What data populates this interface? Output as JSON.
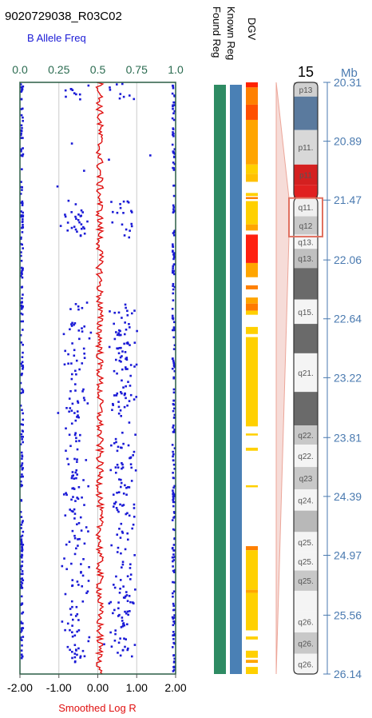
{
  "sample_id": "9020729038_R03C02",
  "track_labels": {
    "dgv": "DGV",
    "known_reg": "Known Reg",
    "found_reg": "Found Reg"
  },
  "colors": {
    "baf_points": "#1a1ad6",
    "log_r_line": "#e01010",
    "grid": "#cccccc",
    "top_axis_text": "#2b6b50",
    "found_reg": "#2e8b63",
    "known_reg": "#4a80b5",
    "ideogram_axis": "#4a7ab0",
    "highlight_box": "#e07060"
  },
  "chart_data": {
    "type": "scatter",
    "title": "9020729038_R03C02",
    "top_axis": {
      "label": "B Allele Freq",
      "range": [
        0.0,
        1.0
      ],
      "ticks": [
        "0.0",
        "0.25",
        "0.5",
        "0.75",
        "1.0"
      ]
    },
    "bottom_axis": {
      "label": "Smoothed Log R",
      "range": [
        -2.0,
        2.0
      ],
      "ticks": [
        "-2.00",
        "-1.00",
        "0.00",
        "1.00",
        "2.00"
      ]
    },
    "y_axis": {
      "label": "Mb",
      "chromosome": "15",
      "range": [
        20.31,
        26.14
      ],
      "ticks": [
        "20.31",
        "20.89",
        "21.47",
        "22.06",
        "22.64",
        "23.22",
        "23.81",
        "24.39",
        "24.97",
        "25.56",
        "26.14"
      ]
    },
    "series": [
      {
        "name": "B Allele Freq",
        "kind": "scatter",
        "description_from_picture": "dense columns at 0.0 and 1.0 across whole region; heterozygous clusters near 0.33 and 0.67 except gaps"
      },
      {
        "name": "Smoothed Log R",
        "kind": "line",
        "approx_value": 0.05
      }
    ],
    "baf_bands": [
      {
        "mb": [
          20.31,
          20.48
        ],
        "het": true
      },
      {
        "mb": [
          20.48,
          21.44
        ],
        "het": false
      },
      {
        "mb": [
          21.44,
          21.84
        ],
        "het": true
      },
      {
        "mb": [
          21.84,
          22.47
        ],
        "het": false
      },
      {
        "mb": [
          22.47,
          26.06
        ],
        "het": true
      }
    ],
    "dgv_segments": [
      {
        "mb": [
          20.31,
          20.36
        ],
        "color": "#ff2200"
      },
      {
        "mb": [
          20.36,
          20.53
        ],
        "color": "#ff8000"
      },
      {
        "mb": [
          20.53,
          20.68
        ],
        "color": "#ff5000"
      },
      {
        "mb": [
          20.68,
          21.12
        ],
        "color": "#ffa500"
      },
      {
        "mb": [
          21.12,
          21.21
        ],
        "color": "#ffd000"
      },
      {
        "mb": [
          21.21,
          21.29
        ],
        "color": "#ffc000"
      },
      {
        "mb": [
          21.4,
          21.43
        ],
        "color": "#ffd000"
      },
      {
        "mb": [
          21.44,
          21.46
        ],
        "color": "#ff8000"
      },
      {
        "mb": [
          21.48,
          21.71
        ],
        "color": "#ffd000"
      },
      {
        "mb": [
          21.71,
          21.77
        ],
        "color": "#ffa500"
      },
      {
        "mb": [
          21.81,
          22.09
        ],
        "color": "#ff2010"
      },
      {
        "mb": [
          22.09,
          22.23
        ],
        "color": "#ffa500"
      },
      {
        "mb": [
          22.31,
          22.35
        ],
        "color": "#ff8000"
      },
      {
        "mb": [
          22.43,
          22.49
        ],
        "color": "#ffa500"
      },
      {
        "mb": [
          22.49,
          22.56
        ],
        "color": "#ff7a00"
      },
      {
        "mb": [
          22.56,
          22.6
        ],
        "color": "#ffd000"
      },
      {
        "mb": [
          22.72,
          22.79
        ],
        "color": "#ffd000"
      },
      {
        "mb": [
          22.82,
          23.7
        ],
        "color": "#ffd000"
      },
      {
        "mb": [
          23.77,
          23.79
        ],
        "color": "#ffd000"
      },
      {
        "mb": [
          23.91,
          23.94
        ],
        "color": "#ffd000"
      },
      {
        "mb": [
          24.28,
          24.3
        ],
        "color": "#ffd000"
      },
      {
        "mb": [
          24.88,
          24.92
        ],
        "color": "#ff8000"
      },
      {
        "mb": [
          24.92,
          25.31
        ],
        "color": "#ffd000"
      },
      {
        "mb": [
          25.31,
          25.34
        ],
        "color": "#ffa500"
      },
      {
        "mb": [
          25.34,
          25.71
        ],
        "color": "#ffd000"
      },
      {
        "mb": [
          25.77,
          25.8
        ],
        "color": "#ffd000"
      },
      {
        "mb": [
          25.91,
          25.98
        ],
        "color": "#ffd000"
      },
      {
        "mb": [
          26.0,
          26.03
        ],
        "color": "#ffa500"
      },
      {
        "mb": [
          26.07,
          26.14
        ],
        "color": "#ffd000"
      }
    ],
    "ideogram": {
      "label": "15",
      "bands": [
        {
          "mb": [
            20.31,
            20.45
          ],
          "label": "p13",
          "fill": "#d0d0d0"
        },
        {
          "mb": [
            20.45,
            20.78
          ],
          "label": "",
          "fill": "#5a7a9e"
        },
        {
          "mb": [
            20.78,
            21.12
          ],
          "label": "p11.",
          "fill": "#d8d8d8"
        },
        {
          "mb": [
            21.12,
            21.32
          ],
          "label": "p11",
          "fill": "#d42020"
        },
        {
          "mb": [
            21.32,
            21.45
          ],
          "label": "",
          "fill": "#e02020"
        },
        {
          "mb": [
            21.45,
            21.63
          ],
          "label": "q11.",
          "fill": "#f0f0f0"
        },
        {
          "mb": [
            21.63,
            21.81
          ],
          "label": "q12",
          "fill": "#c8c8c8"
        },
        {
          "mb": [
            21.81,
            21.95
          ],
          "label": "q13.",
          "fill": "#f4f4f4"
        },
        {
          "mb": [
            21.95,
            22.14
          ],
          "label": "q13.",
          "fill": "#c0c0c0"
        },
        {
          "mb": [
            22.14,
            22.45
          ],
          "label": "",
          "fill": "#6a6a6a"
        },
        {
          "mb": [
            22.45,
            22.69
          ],
          "label": "q15.",
          "fill": "#f4f4f4"
        },
        {
          "mb": [
            22.69,
            22.98
          ],
          "label": "",
          "fill": "#6a6a6a"
        },
        {
          "mb": [
            22.98,
            23.36
          ],
          "label": "q21.",
          "fill": "#f4f4f4"
        },
        {
          "mb": [
            23.36,
            23.69
          ],
          "label": "",
          "fill": "#6a6a6a"
        },
        {
          "mb": [
            23.69,
            23.88
          ],
          "label": "q22.",
          "fill": "#c8c8c8"
        },
        {
          "mb": [
            23.88,
            24.1
          ],
          "label": "q22.",
          "fill": "#f4f4f4"
        },
        {
          "mb": [
            24.1,
            24.32
          ],
          "label": "q23",
          "fill": "#c8c8c8"
        },
        {
          "mb": [
            24.32,
            24.53
          ],
          "label": "q24.",
          "fill": "#f4f4f4"
        },
        {
          "mb": [
            24.53,
            24.74
          ],
          "label": "",
          "fill": "#b8b8b8"
        },
        {
          "mb": [
            24.74,
            24.94
          ],
          "label": "q25.",
          "fill": "#f4f4f4"
        },
        {
          "mb": [
            24.94,
            25.12
          ],
          "label": "q25.",
          "fill": "#f4f4f4"
        },
        {
          "mb": [
            25.12,
            25.32
          ],
          "label": "q25.",
          "fill": "#c8c8c8"
        },
        {
          "mb": [
            25.32,
            25.52
          ],
          "label": "",
          "fill": "#f4f4f4"
        },
        {
          "mb": [
            25.52,
            25.73
          ],
          "label": "q26.",
          "fill": "#f4f4f4"
        },
        {
          "mb": [
            25.73,
            25.94
          ],
          "label": "q26.",
          "fill": "#c8c8c8"
        },
        {
          "mb": [
            25.94,
            26.14
          ],
          "label": "q26.",
          "fill": "#f4f4f4"
        }
      ],
      "highlight_mb": [
        21.45,
        21.83
      ]
    },
    "grid": true
  }
}
